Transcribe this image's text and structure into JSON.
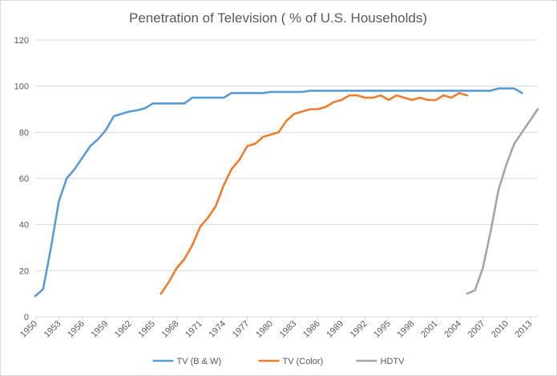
{
  "chart_data": {
    "type": "line",
    "title": "Penetration of Television ( % of U.S. Households)",
    "xlabel": "",
    "ylabel": "",
    "xlim": [
      1950,
      2014
    ],
    "ylim": [
      0,
      120
    ],
    "y_ticks": [
      0,
      20,
      40,
      60,
      80,
      100,
      120
    ],
    "x_ticks": [
      1950,
      1953,
      1956,
      1959,
      1962,
      1965,
      1968,
      1971,
      1974,
      1977,
      1980,
      1983,
      1986,
      1989,
      1992,
      1995,
      1998,
      2001,
      2004,
      2007,
      2010,
      2013
    ],
    "grid": "horizontal",
    "legend_position": "bottom",
    "series": [
      {
        "name": "TV  (B & W)",
        "color": "#5b9bd5",
        "x": [
          1950,
          1951,
          1952,
          1953,
          1954,
          1955,
          1956,
          1957,
          1958,
          1959,
          1960,
          1961,
          1962,
          1963,
          1964,
          1965,
          1966,
          1967,
          1968,
          1969,
          1970,
          1971,
          1972,
          1973,
          1974,
          1975,
          1976,
          1977,
          1978,
          1979,
          1980,
          1981,
          1982,
          1983,
          1984,
          1985,
          1986,
          1987,
          1988,
          1989,
          1990,
          1991,
          1992,
          1993,
          1994,
          1995,
          1996,
          1997,
          1998,
          1999,
          2000,
          2001,
          2002,
          2003,
          2004,
          2005,
          2006,
          2007,
          2008,
          2009,
          2010,
          2011,
          2012
        ],
        "values": [
          9,
          12,
          30,
          50,
          60,
          64,
          69,
          74,
          77,
          81,
          87,
          88,
          89,
          89.5,
          90.5,
          92.5,
          92.5,
          92.5,
          92.5,
          92.5,
          95,
          95,
          95,
          95,
          95,
          97,
          97,
          97,
          97,
          97,
          97.5,
          97.5,
          97.5,
          97.5,
          97.5,
          98,
          98,
          98,
          98,
          98,
          98,
          98,
          98,
          98,
          98,
          98,
          98,
          98,
          98,
          98,
          98,
          98,
          98,
          98,
          98,
          98,
          98,
          98,
          98,
          99,
          99,
          99,
          97
        ]
      },
      {
        "name": "TV (Color)",
        "color": "#ed7d31",
        "x": [
          1966,
          1967,
          1968,
          1969,
          1970,
          1971,
          1972,
          1973,
          1974,
          1975,
          1976,
          1977,
          1978,
          1979,
          1980,
          1981,
          1982,
          1983,
          1984,
          1985,
          1986,
          1987,
          1988,
          1989,
          1990,
          1991,
          1992,
          1993,
          1994,
          1995,
          1996,
          1997,
          1998,
          1999,
          2000,
          2001,
          2002,
          2003,
          2004,
          2005
        ],
        "values": [
          10,
          15,
          21,
          25,
          31,
          39,
          43,
          48,
          57,
          64,
          68,
          74,
          75,
          78,
          79,
          80,
          85,
          88,
          89,
          90,
          90,
          91,
          93,
          94,
          96,
          96,
          95,
          95,
          96,
          94,
          96,
          95,
          94,
          95,
          94,
          94,
          96,
          95,
          97,
          96
        ]
      },
      {
        "name": "HDTV",
        "color": "#a5a5a5",
        "x": [
          2005,
          2006,
          2007,
          2008,
          2009,
          2010,
          2011,
          2012,
          2013,
          2014
        ],
        "values": [
          10,
          11.5,
          21,
          37,
          55,
          66,
          75,
          80,
          85,
          90
        ]
      }
    ]
  }
}
